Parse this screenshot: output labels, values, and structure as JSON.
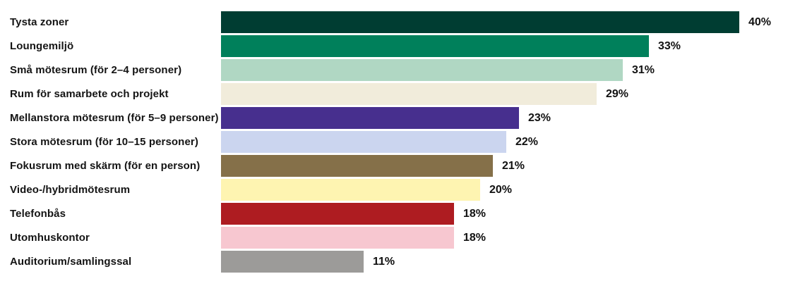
{
  "chart_data": {
    "type": "bar",
    "orientation": "horizontal",
    "title": "",
    "xlabel": "",
    "ylabel": "",
    "xlim": [
      0,
      40
    ],
    "grid": false,
    "legend": false,
    "value_suffix": "%",
    "categories": [
      "Tysta zoner",
      "Loungemiljö",
      "Små mötesrum (för 2–4 personer)",
      "Rum för samarbete och projekt",
      "Mellanstora mötesrum (för 5–9 personer)",
      "Stora mötesrum (för 10–15 personer)",
      "Fokusrum med skärm (för en person)",
      "Video-/hybridmötesrum",
      "Telefonbås",
      "Utomhuskontor",
      "Auditorium/samlingssal"
    ],
    "values": [
      40,
      33,
      31,
      29,
      23,
      22,
      21,
      20,
      18,
      18,
      11
    ],
    "value_labels": [
      "40%",
      "33%",
      "31%",
      "29%",
      "23%",
      "22%",
      "21%",
      "20%",
      "18%",
      "18%",
      "11%"
    ],
    "colors": [
      "#003D32",
      "#00805B",
      "#B0D7C3",
      "#F1ECDB",
      "#472F8E",
      "#CBD5EF",
      "#857049",
      "#FEF4B1",
      "#AE1C21",
      "#F7C7D0",
      "#9C9B99"
    ]
  }
}
